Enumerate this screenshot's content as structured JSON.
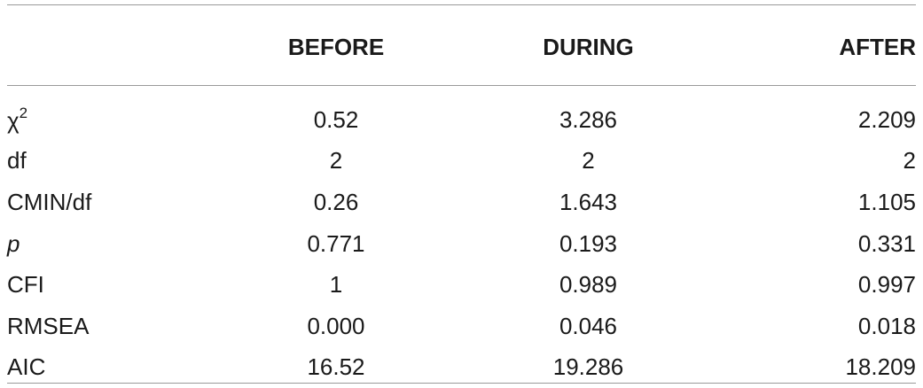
{
  "table": {
    "columns": [
      "",
      "BEFORE",
      "DURING",
      "AFTER"
    ],
    "rows": [
      {
        "label": "χ",
        "label_sup": "2",
        "italic": false,
        "values": [
          "0.52",
          "3.286",
          "2.209"
        ]
      },
      {
        "label": "df",
        "italic": false,
        "values": [
          "2",
          "2",
          "2"
        ]
      },
      {
        "label": "CMIN/df",
        "italic": false,
        "values": [
          "0.26",
          "1.643",
          "1.105"
        ]
      },
      {
        "label": "p",
        "italic": true,
        "values": [
          "0.771",
          "0.193",
          "0.331"
        ]
      },
      {
        "label": "CFI",
        "italic": false,
        "values": [
          "1",
          "0.989",
          "0.997"
        ]
      },
      {
        "label": "RMSEA",
        "italic": false,
        "values": [
          "0.000",
          "0.046",
          "0.018"
        ]
      },
      {
        "label": "AIC",
        "italic": false,
        "values": [
          "16.52",
          "19.286",
          "18.209"
        ]
      }
    ]
  }
}
